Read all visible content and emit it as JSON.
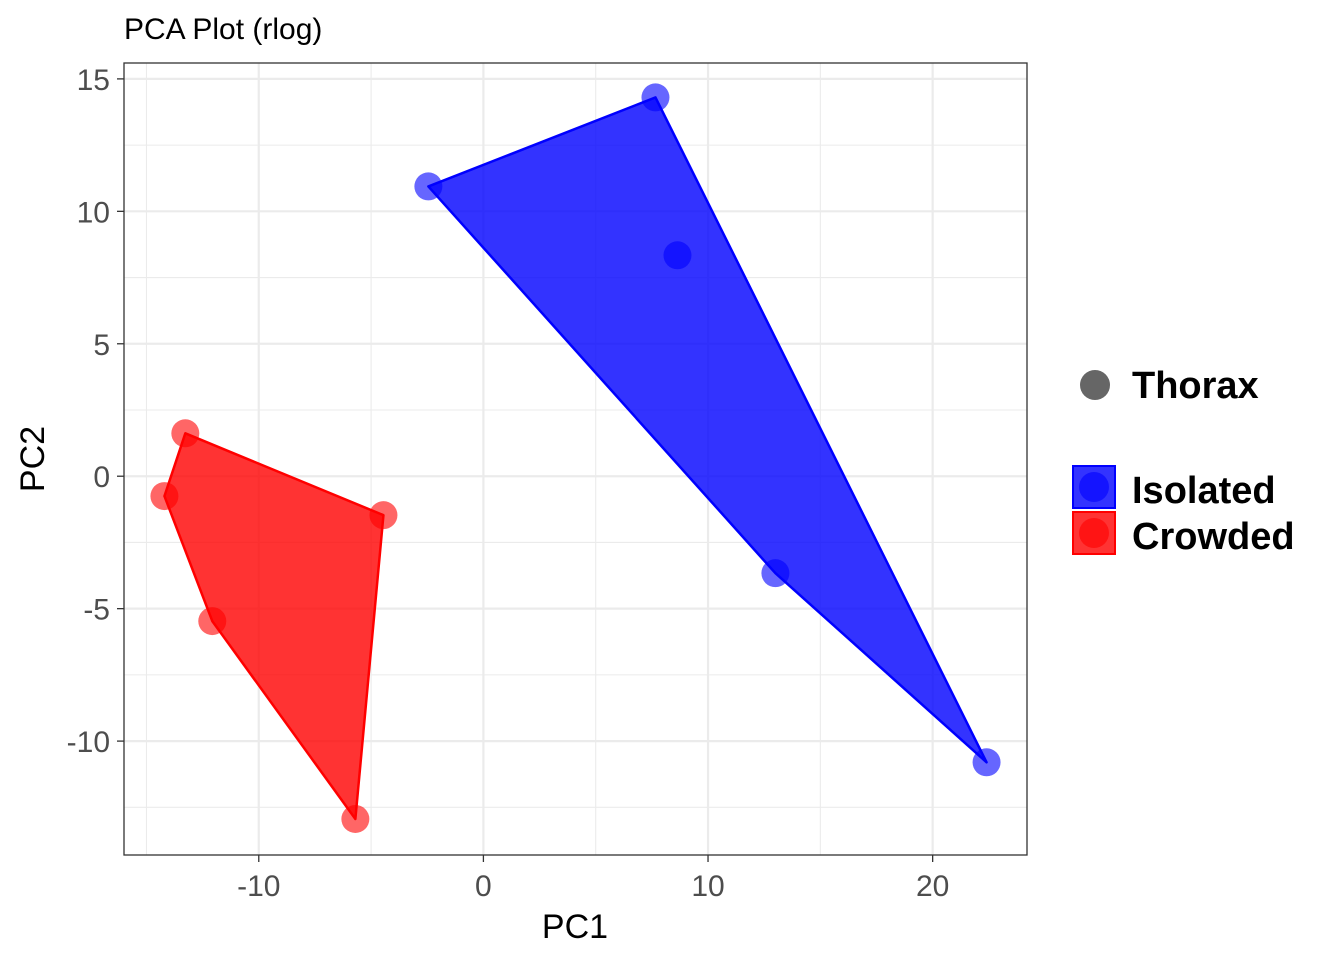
{
  "chart_data": {
    "type": "scatter",
    "title": "PCA Plot (rlog)",
    "xlabel": "PC1",
    "ylabel": "PC2",
    "xlim": [
      -16.0,
      24.2
    ],
    "ylim": [
      -14.3,
      15.6
    ],
    "xticks": [
      -10,
      0,
      10,
      20
    ],
    "yticks": [
      -10,
      -5,
      0,
      5,
      10,
      15
    ],
    "grid": true,
    "legend_position": "right",
    "shape_legend": {
      "label": "Thorax",
      "color": "#666666"
    },
    "series": [
      {
        "name": "Isolated",
        "color": "#0000ff",
        "hull": true,
        "points": [
          {
            "x": -2.45,
            "y": 10.94
          },
          {
            "x": 7.66,
            "y": 14.3
          },
          {
            "x": 8.64,
            "y": 8.34
          },
          {
            "x": 13.0,
            "y": -3.66
          },
          {
            "x": 22.4,
            "y": -10.8
          }
        ]
      },
      {
        "name": "Crowded",
        "color": "#ff0000",
        "hull": true,
        "points": [
          {
            "x": -13.27,
            "y": 1.62
          },
          {
            "x": -14.2,
            "y": -0.75
          },
          {
            "x": -4.45,
            "y": -1.47
          },
          {
            "x": -12.07,
            "y": -5.47
          },
          {
            "x": -5.7,
            "y": -12.94
          }
        ]
      }
    ]
  }
}
